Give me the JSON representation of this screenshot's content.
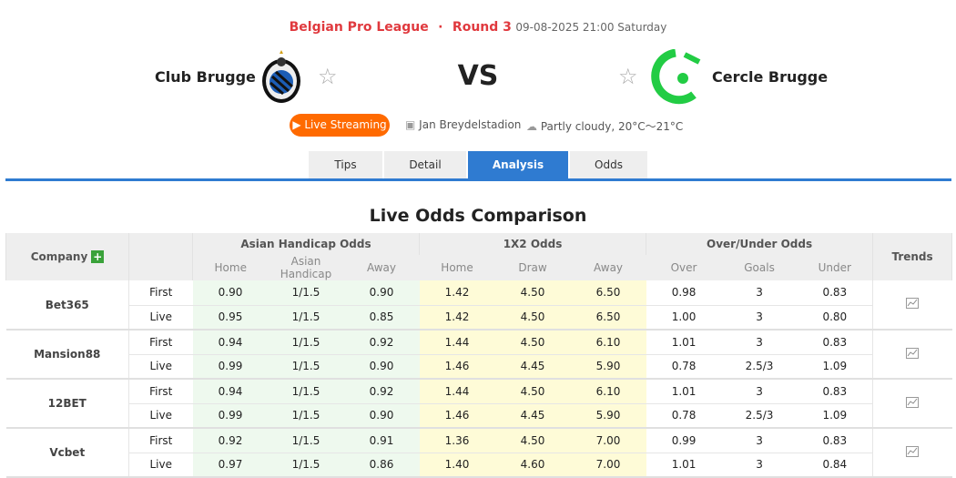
{
  "match": {
    "league": "Belgian Pro League",
    "round": "Round 3",
    "datetime": "09-08-2025 21:00 Saturday",
    "home": "Club Brugge",
    "away": "Cercle Brugge",
    "vs": "VS",
    "live": "Live Streaming",
    "venue": "Jan Breydelstadion",
    "weather": "Partly cloudy, 20°C～21°C"
  },
  "tabs": [
    "Tips",
    "Detail",
    "Analysis",
    "Odds"
  ],
  "active_tab": "Analysis",
  "section_title": "Live Odds Comparison",
  "table": {
    "headers": {
      "company": "Company",
      "ah": "Asian Handicap Odds",
      "x12": "1X2 Odds",
      "ou": "Over/Under Odds",
      "trends": "Trends",
      "sub": [
        "Home",
        "Asian Handicap",
        "Away",
        "Home",
        "Draw",
        "Away",
        "Over",
        "Goals",
        "Under"
      ]
    },
    "companies": [
      {
        "name": "Bet365",
        "rows": [
          [
            "First",
            "0.90",
            "1/1.5",
            "0.90",
            "1.42",
            "4.50",
            "6.50",
            "0.98",
            "3",
            "0.83"
          ],
          [
            "Live",
            "0.95",
            "1/1.5",
            "0.85",
            "1.42",
            "4.50",
            "6.50",
            "1.00",
            "3",
            "0.80"
          ]
        ]
      },
      {
        "name": "Mansion88",
        "rows": [
          [
            "First",
            "0.94",
            "1/1.5",
            "0.92",
            "1.44",
            "4.50",
            "6.10",
            "1.01",
            "3",
            "0.83"
          ],
          [
            "Live",
            "0.99",
            "1/1.5",
            "0.90",
            "1.46",
            "4.45",
            "5.90",
            "0.78",
            "2.5/3",
            "1.09"
          ]
        ]
      },
      {
        "name": "12BET",
        "rows": [
          [
            "First",
            "0.94",
            "1/1.5",
            "0.92",
            "1.44",
            "4.50",
            "6.10",
            "1.01",
            "3",
            "0.83"
          ],
          [
            "Live",
            "0.99",
            "1/1.5",
            "0.90",
            "1.46",
            "4.45",
            "5.90",
            "0.78",
            "2.5/3",
            "1.09"
          ]
        ]
      },
      {
        "name": "Vcbet",
        "rows": [
          [
            "First",
            "0.92",
            "1/1.5",
            "0.91",
            "1.36",
            "4.50",
            "7.00",
            "0.99",
            "3",
            "0.83"
          ],
          [
            "Live",
            "0.97",
            "1/1.5",
            "0.86",
            "1.40",
            "4.60",
            "7.00",
            "1.01",
            "3",
            "0.84"
          ]
        ]
      }
    ]
  },
  "colors": {
    "accent": "#2f7bd1",
    "live": "#ff6a00",
    "league": "#e0393e",
    "cercle": "#22cc44"
  }
}
